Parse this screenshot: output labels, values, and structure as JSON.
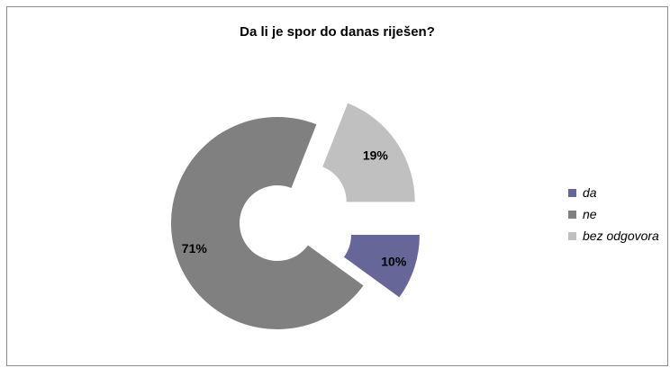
{
  "chart_data": {
    "type": "pie",
    "variant": "exploded-donut",
    "title": "Da li je spor do danas riješen?",
    "categories": [
      "da",
      "ne",
      "bez odgovora"
    ],
    "values": [
      10,
      71,
      19
    ],
    "labels": [
      "10%",
      "71%",
      "19%"
    ],
    "colors": [
      "#666699",
      "#808080",
      "#c0c0c0"
    ],
    "legend_position": "right"
  }
}
